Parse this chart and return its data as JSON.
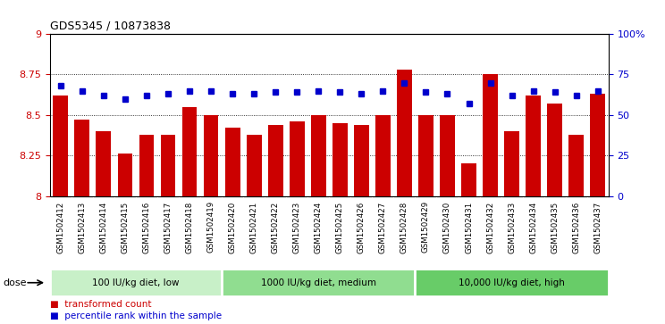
{
  "title": "GDS5345 / 10873838",
  "samples": [
    "GSM1502412",
    "GSM1502413",
    "GSM1502414",
    "GSM1502415",
    "GSM1502416",
    "GSM1502417",
    "GSM1502418",
    "GSM1502419",
    "GSM1502420",
    "GSM1502421",
    "GSM1502422",
    "GSM1502423",
    "GSM1502424",
    "GSM1502425",
    "GSM1502426",
    "GSM1502427",
    "GSM1502428",
    "GSM1502429",
    "GSM1502430",
    "GSM1502431",
    "GSM1502432",
    "GSM1502433",
    "GSM1502434",
    "GSM1502435",
    "GSM1502436",
    "GSM1502437"
  ],
  "bar_values": [
    8.62,
    8.47,
    8.4,
    8.26,
    8.38,
    8.38,
    8.55,
    8.5,
    8.42,
    8.38,
    8.44,
    8.46,
    8.5,
    8.45,
    8.44,
    8.5,
    8.78,
    8.5,
    8.5,
    8.2,
    8.75,
    8.4,
    8.62,
    8.57,
    8.38,
    8.63
  ],
  "blue_values": [
    68,
    65,
    62,
    60,
    62,
    63,
    65,
    65,
    63,
    63,
    64,
    64,
    65,
    64,
    63,
    65,
    70,
    64,
    63,
    57,
    70,
    62,
    65,
    64,
    62,
    65
  ],
  "groups": [
    {
      "label": "100 IU/kg diet, low",
      "start": 0,
      "end": 8
    },
    {
      "label": "1000 IU/kg diet, medium",
      "start": 8,
      "end": 17
    },
    {
      "label": "10,000 IU/kg diet, high",
      "start": 17,
      "end": 26
    }
  ],
  "group_bg_colors": [
    "#c8f0c8",
    "#90ee90",
    "#90ee90"
  ],
  "bar_color": "#cc0000",
  "blue_color": "#0000cc",
  "ylim_left": [
    8.0,
    9.0
  ],
  "ylim_right": [
    0,
    100
  ],
  "yticks_left": [
    8.0,
    8.25,
    8.5,
    8.75,
    9.0
  ],
  "ytick_labels_left": [
    "8",
    "8.25",
    "8.5",
    "8.75",
    "9"
  ],
  "yticks_right": [
    0,
    25,
    50,
    75,
    100
  ],
  "ytick_labels_right": [
    "0",
    "25",
    "50",
    "75",
    "100%"
  ],
  "gridlines": [
    8.25,
    8.5,
    8.75
  ],
  "dose_label": "dose",
  "tick_area_color": "#d0d0d0",
  "plot_bg_color": "#ffffff"
}
